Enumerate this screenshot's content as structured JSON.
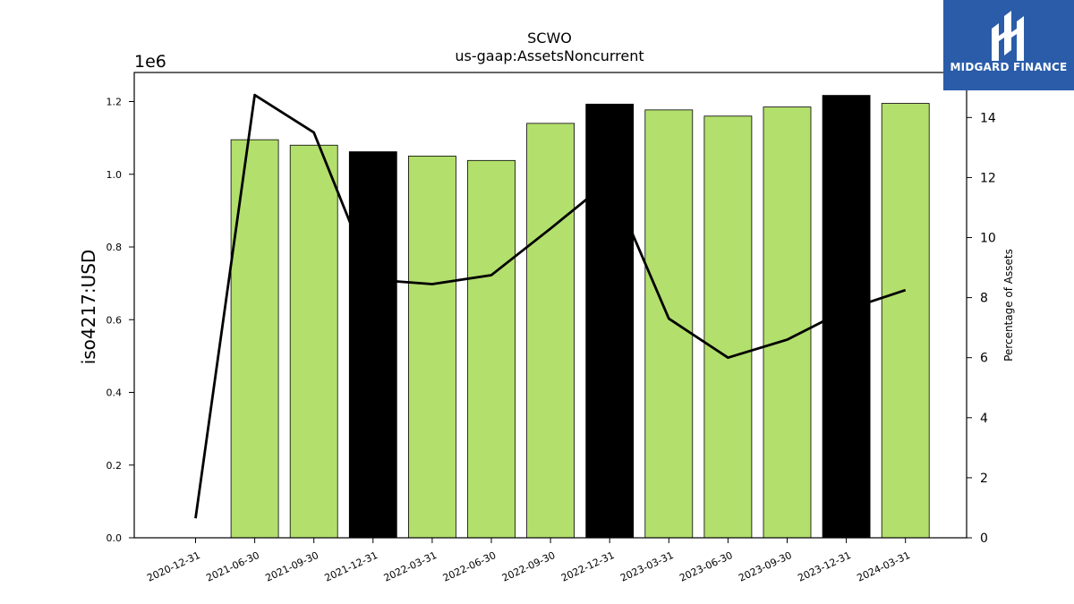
{
  "chart_data": {
    "type": "bar",
    "title": "SCWO",
    "subtitle": "us-gaap:AssetsNoncurrent",
    "ylabel": "iso4217:USD",
    "y_offset_label": "1e6",
    "y2label": "Percentage of Assets",
    "ylim": [
      0,
      1.28
    ],
    "y2lim": [
      0,
      15.5
    ],
    "y_ticks": [
      "0.0",
      "0.2",
      "0.4",
      "0.6",
      "0.8",
      "1.0",
      "1.2"
    ],
    "y2_ticks": [
      "0",
      "2",
      "4",
      "6",
      "8",
      "10",
      "12",
      "14"
    ],
    "categories": [
      "2020-12-31",
      "2021-06-30",
      "2021-09-30",
      "2021-12-31",
      "2022-03-31",
      "2022-06-30",
      "2022-09-30",
      "2022-12-31",
      "2023-03-31",
      "2023-06-30",
      "2023-09-30",
      "2023-12-31",
      "2024-03-31"
    ],
    "series": [
      {
        "type": "bar",
        "values": [
          null,
          1.095,
          1.08,
          1.062,
          1.05,
          1.038,
          1.14,
          1.193,
          1.177,
          1.16,
          1.185,
          1.217,
          1.195
        ],
        "colors": [
          "#b3df6d",
          "#b3df6d",
          "#b3df6d",
          "#000000",
          "#b3df6d",
          "#b3df6d",
          "#b3df6d",
          "#000000",
          "#b3df6d",
          "#b3df6d",
          "#b3df6d",
          "#000000",
          "#b3df6d"
        ]
      },
      {
        "type": "line",
        "axis": "right",
        "values": [
          0.65,
          14.75,
          13.5,
          8.6,
          8.45,
          8.75,
          10.3,
          11.9,
          7.3,
          6.0,
          6.6,
          7.6,
          8.25
        ],
        "color": "#000000"
      }
    ],
    "grid": false
  },
  "logo": {
    "text": "MIDGARD FINANCE",
    "color": "#2a5caa"
  }
}
